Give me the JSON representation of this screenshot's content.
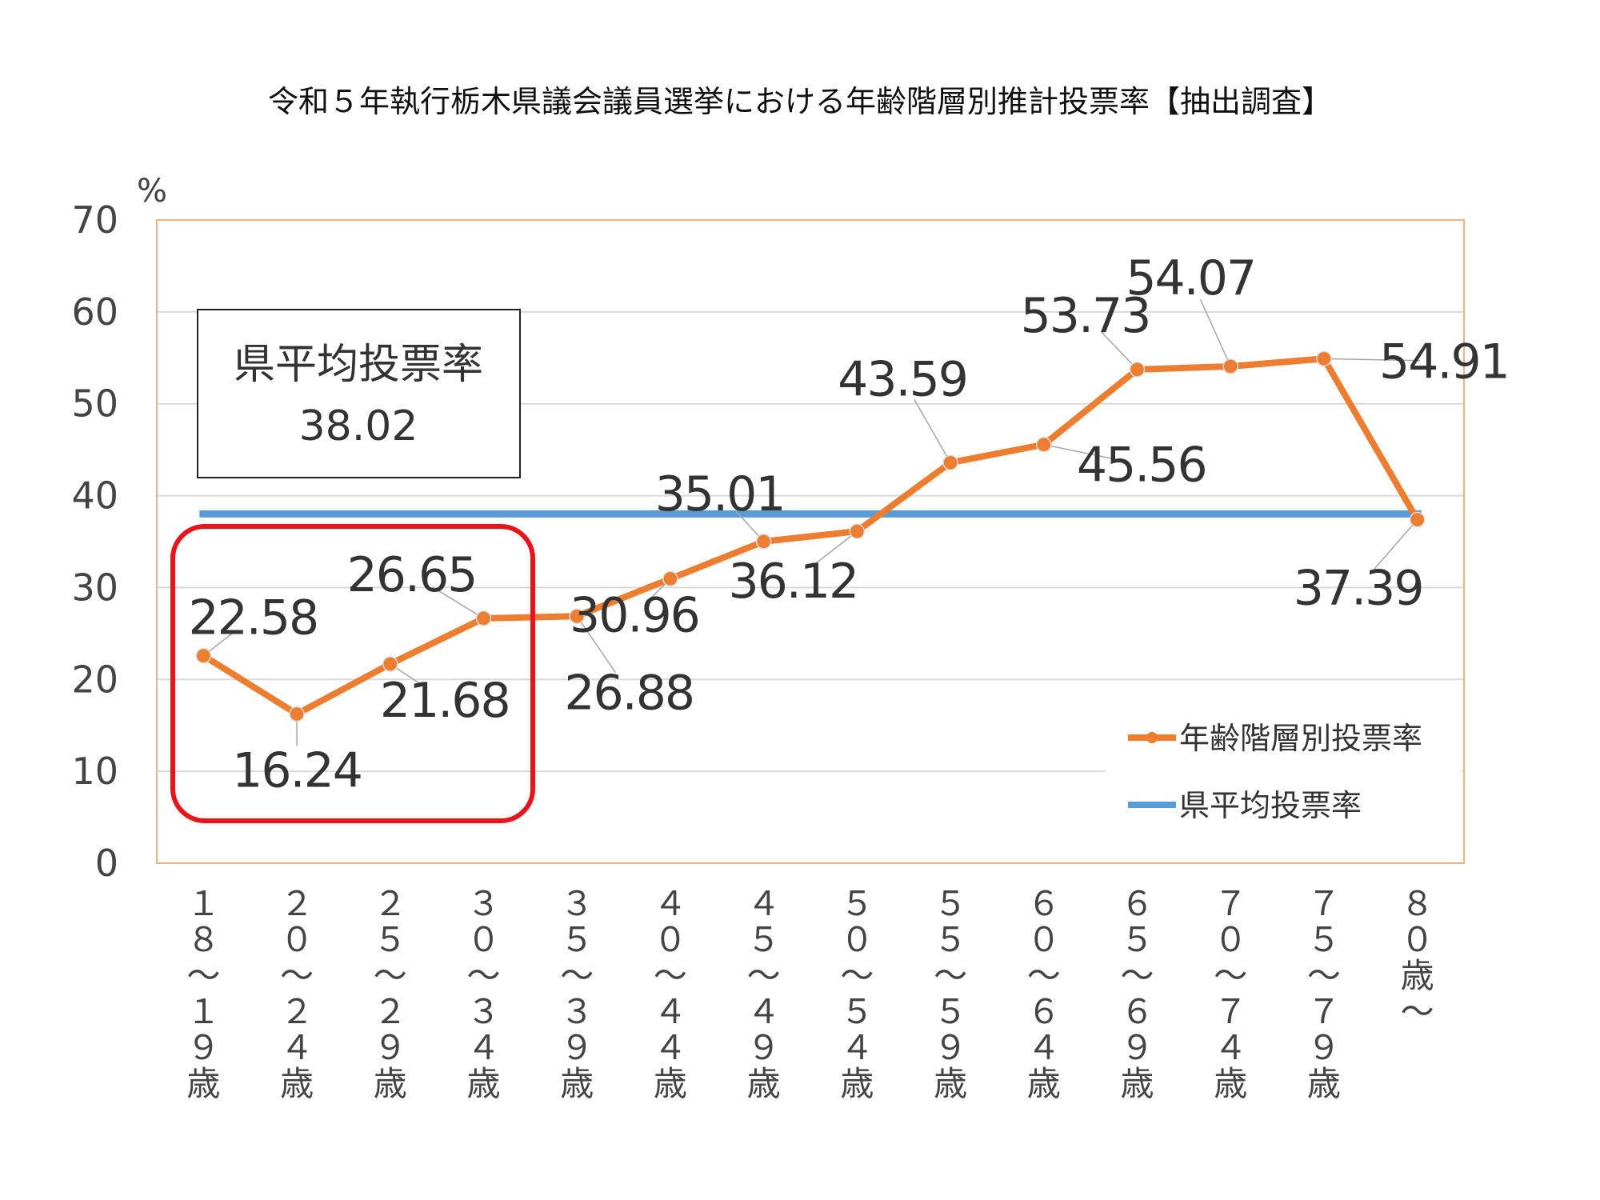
{
  "title": "令和５年執行栃木県議会議員選挙における年齢階層別推計投票率【抽出調査】",
  "avg_box": {
    "label": "県平均投票率",
    "value": "38.02"
  },
  "chart_data": {
    "type": "line",
    "title": "令和５年執行栃木県議会議員選挙における年齢階層別推計投票率【抽出調査】",
    "xlabel": "",
    "ylabel": "%",
    "ylim": [
      0,
      70
    ],
    "yticks": [
      "0",
      "10",
      "20",
      "30",
      "40",
      "50",
      "60",
      "70"
    ],
    "categories": [
      "１８～１９歳",
      "２０～２４歳",
      "２５～２９歳",
      "３０～３４歳",
      "３５～３９歳",
      "４０～４４歳",
      "４５～４９歳",
      "５０～５４歳",
      "５５～５９歳",
      "６０～６４歳",
      "６５～６９歳",
      "７０～７４歳",
      "７５～７９歳",
      "８０歳～"
    ],
    "category_labels": [
      [
        "１",
        "８",
        "～",
        "１",
        "９",
        "歳"
      ],
      [
        "２",
        "０",
        "～",
        "２",
        "４",
        "歳"
      ],
      [
        "２",
        "５",
        "～",
        "２",
        "９",
        "歳"
      ],
      [
        "３",
        "０",
        "～",
        "３",
        "４",
        "歳"
      ],
      [
        "３",
        "５",
        "～",
        "３",
        "９",
        "歳"
      ],
      [
        "４",
        "０",
        "～",
        "４",
        "４",
        "歳"
      ],
      [
        "４",
        "５",
        "～",
        "４",
        "９",
        "歳"
      ],
      [
        "５",
        "０",
        "～",
        "５",
        "４",
        "歳"
      ],
      [
        "５",
        "５",
        "～",
        "５",
        "９",
        "歳"
      ],
      [
        "６",
        "０",
        "～",
        "６",
        "４",
        "歳"
      ],
      [
        "６",
        "５",
        "～",
        "６",
        "９",
        "歳"
      ],
      [
        "７",
        "０",
        "～",
        "７",
        "４",
        "歳"
      ],
      [
        "７",
        "５",
        "～",
        "７",
        "９",
        "歳"
      ],
      [
        "８",
        "０",
        "歳",
        "～"
      ]
    ],
    "series": [
      {
        "name": "年齢階層別投票率",
        "values": [
          22.58,
          16.24,
          21.68,
          26.65,
          26.88,
          30.96,
          35.01,
          36.12,
          43.59,
          45.56,
          53.73,
          54.07,
          54.91,
          37.39
        ],
        "labels": [
          "22.58",
          "16.24",
          "21.68",
          "26.65",
          "26.88",
          "30.96",
          "35.01",
          "36.12",
          "43.59",
          "45.56",
          "53.73",
          "54.07",
          "54.91",
          "37.39"
        ],
        "color": "#ED7D31"
      },
      {
        "name": "県平均投票率",
        "value": 38.02,
        "color": "#5B9BD5"
      }
    ],
    "grid": true,
    "legend": "bottom-right",
    "highlight": {
      "categories": [
        "１８～１９歳",
        "２０～２４歳",
        "２５～２９歳",
        "３０～３４歳"
      ],
      "color": "#E8141B"
    },
    "colors": {
      "plot_border": "#F4B183",
      "gridline": "#D9D9D9",
      "leader": "#A6A6A6"
    }
  }
}
